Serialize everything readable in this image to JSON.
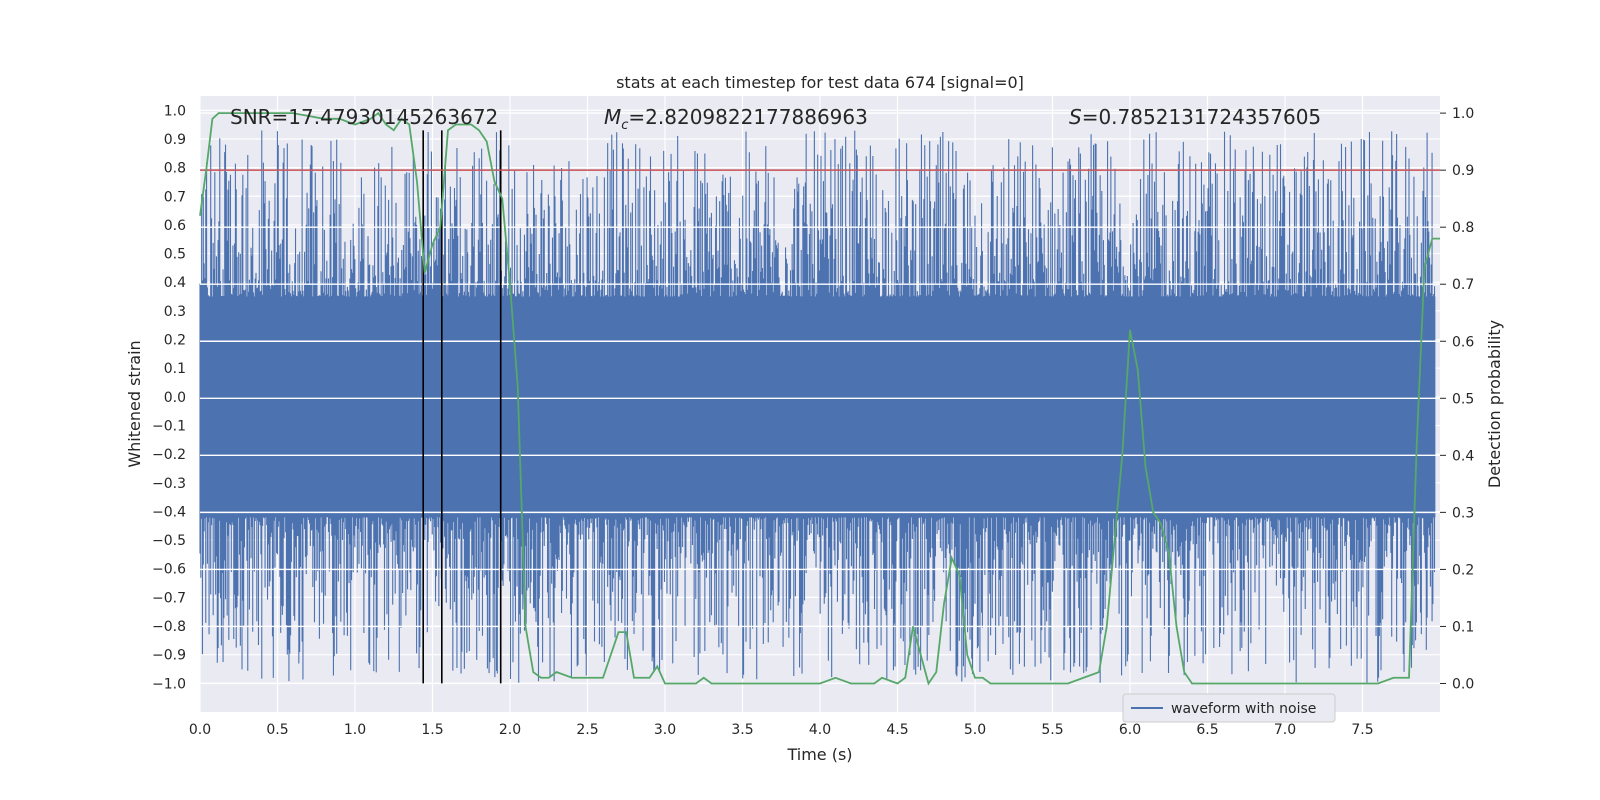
{
  "chart_data": {
    "type": "line",
    "title": "stats at each timestep for test data 674 [signal=0]",
    "xlabel": "Time (s)",
    "ylabel": "Whitened strain",
    "y2label": "Detection probability",
    "xlim": [
      0.0,
      8.0
    ],
    "ylim": [
      -1.1,
      1.05
    ],
    "y2lim": [
      -0.05,
      1.03
    ],
    "xticks": [
      "0.0",
      "0.5",
      "1.0",
      "1.5",
      "2.0",
      "2.5",
      "3.0",
      "3.5",
      "4.0",
      "4.5",
      "5.0",
      "5.5",
      "6.0",
      "6.5",
      "7.0",
      "7.5"
    ],
    "yticks": [
      "1.0",
      "0.9",
      "0.8",
      "0.7",
      "0.6",
      "0.5",
      "0.4",
      "0.3",
      "0.2",
      "0.1",
      "0.0",
      "-0.1",
      "-0.2",
      "-0.3",
      "-0.4",
      "-0.5",
      "-0.6",
      "-0.7",
      "-0.8",
      "-0.9",
      "-1.0"
    ],
    "y2ticks": [
      "1.0",
      "0.9",
      "0.8",
      "0.7",
      "0.6",
      "0.5",
      "0.4",
      "0.3",
      "0.2",
      "0.1",
      "0.0"
    ],
    "annotations": {
      "snr": "SNR=17.47930145263672",
      "mc_symbol": "M",
      "mc_sub": "c",
      "mc_value": "=2.8209822177886963",
      "s_symbol": "S",
      "s_value": "=0.7852131724357605"
    },
    "threshold": 0.9,
    "vertical_lines": [
      1.44,
      1.56,
      1.94
    ],
    "waveform": {
      "name": "waveform with noise",
      "band_upper": 0.35,
      "band_lower": -0.42,
      "spike_max_up": 0.93,
      "spike_max_down": -1.0,
      "color": "#4c72b0"
    },
    "probability": {
      "color": "#55a868",
      "x": [
        0.0,
        0.04,
        0.08,
        0.12,
        0.2,
        0.4,
        0.6,
        0.8,
        0.9,
        1.0,
        1.1,
        1.15,
        1.2,
        1.25,
        1.3,
        1.35,
        1.4,
        1.45,
        1.5,
        1.55,
        1.6,
        1.65,
        1.7,
        1.75,
        1.8,
        1.85,
        1.9,
        1.95,
        2.0,
        2.05,
        2.1,
        2.15,
        2.2,
        2.25,
        2.3,
        2.4,
        2.5,
        2.6,
        2.7,
        2.75,
        2.8,
        2.85,
        2.9,
        2.95,
        3.0,
        3.05,
        3.1,
        3.15,
        3.2,
        3.25,
        3.3,
        3.4,
        3.5,
        3.6,
        3.7,
        3.8,
        3.9,
        4.0,
        4.1,
        4.2,
        4.3,
        4.35,
        4.4,
        4.5,
        4.55,
        4.6,
        4.65,
        4.7,
        4.75,
        4.8,
        4.85,
        4.9,
        4.95,
        5.0,
        5.05,
        5.1,
        5.2,
        5.3,
        5.4,
        5.5,
        5.6,
        5.7,
        5.8,
        5.85,
        5.9,
        5.95,
        6.0,
        6.05,
        6.1,
        6.15,
        6.2,
        6.25,
        6.3,
        6.35,
        6.4,
        6.5,
        6.6,
        6.7,
        6.8,
        6.9,
        7.0,
        7.2,
        7.4,
        7.6,
        7.7,
        7.75,
        7.8,
        7.85,
        7.9,
        7.95,
        8.0
      ],
      "y": [
        0.82,
        0.9,
        0.99,
        1.0,
        1.0,
        1.0,
        1.0,
        0.99,
        0.99,
        0.98,
        0.99,
        1.0,
        0.98,
        0.97,
        0.99,
        0.98,
        0.88,
        0.72,
        0.77,
        0.8,
        0.97,
        0.98,
        0.98,
        0.98,
        0.97,
        0.95,
        0.88,
        0.85,
        0.7,
        0.52,
        0.1,
        0.02,
        0.01,
        0.01,
        0.02,
        0.01,
        0.01,
        0.01,
        0.09,
        0.09,
        0.01,
        0.01,
        0.01,
        0.03,
        0.0,
        0.0,
        0.0,
        0.0,
        0.0,
        0.01,
        0.0,
        0.0,
        0.0,
        0.0,
        0.0,
        0.0,
        0.0,
        0.0,
        0.01,
        0.0,
        0.0,
        0.0,
        0.01,
        0.0,
        0.01,
        0.1,
        0.05,
        0.0,
        0.02,
        0.14,
        0.22,
        0.19,
        0.05,
        0.01,
        0.01,
        0.0,
        0.0,
        0.0,
        0.0,
        0.0,
        0.0,
        0.01,
        0.02,
        0.1,
        0.25,
        0.4,
        0.62,
        0.55,
        0.38,
        0.3,
        0.28,
        0.23,
        0.1,
        0.02,
        0.0,
        0.0,
        0.0,
        0.0,
        0.0,
        0.0,
        0.0,
        0.0,
        0.0,
        0.0,
        0.01,
        0.01,
        0.01,
        0.42,
        0.73,
        0.78,
        0.78
      ]
    }
  }
}
